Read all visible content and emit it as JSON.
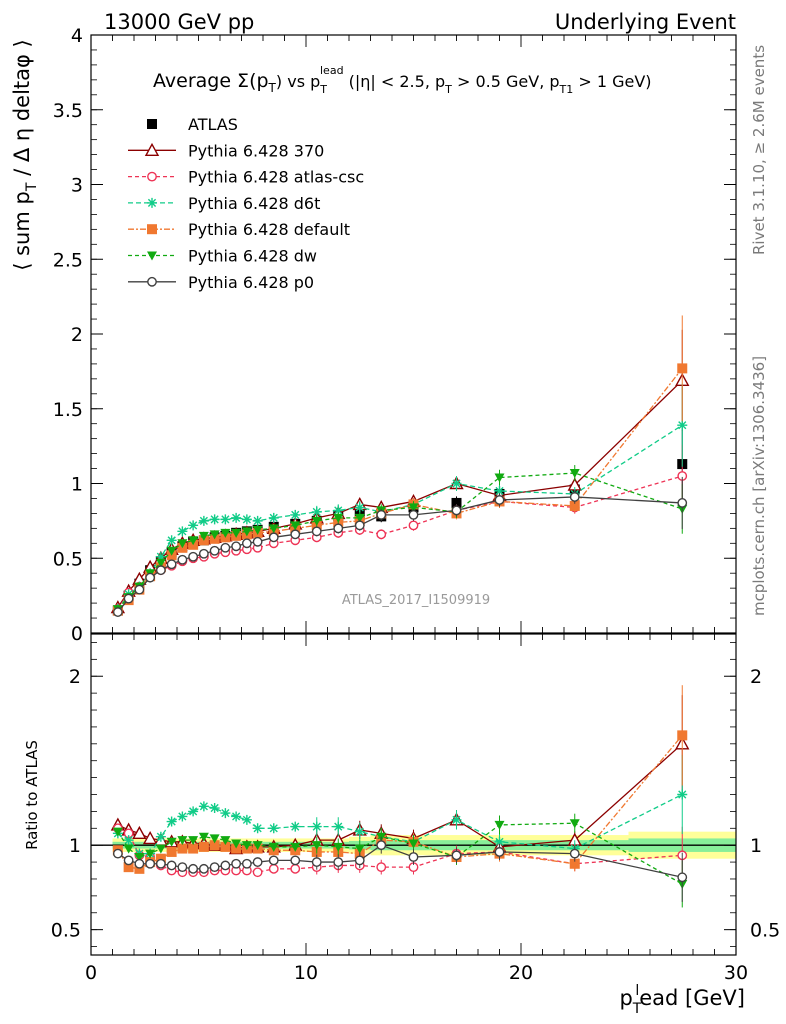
{
  "header": {
    "left": "13000 GeV pp",
    "right": "Underlying Event"
  },
  "side_labels": {
    "rivet": "Rivet 3.1.10, ≥ 2.6M events",
    "mcplots": "mcplots.cern.ch [arXiv:1306.3436]"
  },
  "watermark": "ATLAS_2017_I1509919",
  "chart_data": [
    {
      "type": "line",
      "title_parts": {
        "lead": "Average Σ(p",
        "t1": "T",
        "mid": ") vs p",
        "t2": "T",
        "sup": "lead",
        "rest": " (|η| < 2.5, p",
        "t3": "T",
        "rest2": " > 0.5 GeV, p",
        "t4": "T1",
        "rest3": " > 1 GeV)"
      },
      "ylabel": "⟨ sum p_T / Δ η deltaφ ⟩",
      "ylabel_parts": {
        "a": "⟨ sum p",
        "sub": "T",
        "b": " / Δ η deltaφ ⟩"
      },
      "xlim": [
        0,
        30
      ],
      "ylim": [
        0,
        4
      ],
      "yticks": [
        0,
        0.5,
        1,
        1.5,
        2,
        2.5,
        3,
        3.5,
        4
      ],
      "ytick_labels": [
        "0",
        "0.5",
        "1",
        "1.5",
        "2",
        "2.5",
        "3",
        "3.5",
        "4"
      ],
      "legend_position": "top-left",
      "x": [
        1.25,
        1.75,
        2.25,
        2.75,
        3.25,
        3.75,
        4.25,
        4.75,
        5.25,
        5.75,
        6.25,
        6.75,
        7.25,
        7.75,
        8.5,
        9.5,
        10.5,
        11.5,
        12.5,
        13.5,
        15,
        17,
        19,
        22.5,
        27.5
      ],
      "series": [
        {
          "name": "ATLAS",
          "color": "#000000",
          "marker": "square-filled",
          "dash": "none",
          "values": [
            0.15,
            0.25,
            0.33,
            0.42,
            0.48,
            0.54,
            0.58,
            0.61,
            0.62,
            0.64,
            0.65,
            0.67,
            0.68,
            0.69,
            0.71,
            0.73,
            0.75,
            0.78,
            0.79,
            0.78,
            0.84,
            0.87,
            0.93,
            0.96,
            1.13
          ]
        },
        {
          "name": "Pythia 6.428 370",
          "color": "#8b0000",
          "marker": "triangle-open",
          "dash": "none",
          "values": [
            0.17,
            0.28,
            0.36,
            0.44,
            0.5,
            0.56,
            0.6,
            0.62,
            0.63,
            0.64,
            0.65,
            0.66,
            0.67,
            0.68,
            0.7,
            0.73,
            0.77,
            0.8,
            0.86,
            0.84,
            0.88,
            1.0,
            0.92,
            0.99,
            1.69
          ]
        },
        {
          "name": "Pythia 6.428 atlas-csc",
          "color": "#ee3355",
          "marker": "circle-open",
          "dash": "4,3",
          "values": [
            0.16,
            0.27,
            0.31,
            0.39,
            0.42,
            0.45,
            0.48,
            0.5,
            0.51,
            0.53,
            0.54,
            0.55,
            0.56,
            0.57,
            0.6,
            0.62,
            0.64,
            0.67,
            0.69,
            0.66,
            0.72,
            0.82,
            0.88,
            0.84,
            1.05
          ]
        },
        {
          "name": "Pythia 6.428 d6t",
          "color": "#11cc88",
          "marker": "star",
          "dash": "5,3",
          "values": [
            0.16,
            0.26,
            0.31,
            0.4,
            0.51,
            0.62,
            0.68,
            0.72,
            0.75,
            0.76,
            0.76,
            0.77,
            0.76,
            0.75,
            0.77,
            0.79,
            0.81,
            0.82,
            0.84,
            0.81,
            0.86,
            1.0,
            0.95,
            0.93,
            1.39
          ]
        },
        {
          "name": "Pythia 6.428 default",
          "color": "#f07830",
          "marker": "square-filled",
          "dash": "6,2,2,2",
          "values": [
            0.15,
            0.22,
            0.29,
            0.38,
            0.44,
            0.52,
            0.57,
            0.59,
            0.62,
            0.63,
            0.64,
            0.65,
            0.66,
            0.67,
            0.68,
            0.7,
            0.72,
            0.74,
            0.75,
            0.8,
            0.86,
            0.8,
            0.88,
            0.85,
            1.77
          ]
        },
        {
          "name": "Pythia 6.428 dw",
          "color": "#11aa11",
          "marker": "triangle-down-filled",
          "dash": "4,3",
          "values": [
            0.16,
            0.24,
            0.31,
            0.4,
            0.47,
            0.55,
            0.6,
            0.62,
            0.65,
            0.66,
            0.67,
            0.67,
            0.68,
            0.69,
            0.7,
            0.72,
            0.75,
            0.77,
            0.77,
            0.82,
            0.84,
            0.81,
            1.04,
            1.07,
            0.83
          ]
        },
        {
          "name": "Pythia 6.428 p0",
          "color": "#404040",
          "marker": "circle-open",
          "dash": "none",
          "values": [
            0.14,
            0.23,
            0.29,
            0.37,
            0.42,
            0.46,
            0.49,
            0.51,
            0.53,
            0.55,
            0.57,
            0.58,
            0.6,
            0.61,
            0.64,
            0.66,
            0.68,
            0.7,
            0.72,
            0.79,
            0.79,
            0.82,
            0.89,
            0.91,
            0.87
          ]
        }
      ]
    },
    {
      "type": "line",
      "ylabel": "Ratio to ATLAS",
      "xlabel_parts": {
        "a": "p",
        "sub": "T",
        "sup": "l",
        "b": "ead [GeV]"
      },
      "xlim": [
        0,
        30
      ],
      "xticks": [
        0,
        10,
        20,
        30
      ],
      "xtick_labels": [
        "0",
        "10",
        "20",
        "30"
      ],
      "ylim": [
        0.35,
        2.25
      ],
      "yticks": [
        0.5,
        1,
        2
      ],
      "ytick_labels": [
        "0.5",
        "1",
        "2"
      ],
      "reference_line": 1,
      "band_colors": {
        "inner": "#88ee99",
        "outer": "#ffff99"
      },
      "uncertainty_band": {
        "x_edges": [
          1,
          2,
          3,
          4,
          5,
          6,
          7,
          8,
          9,
          10,
          11,
          12,
          13,
          14,
          16,
          18,
          20,
          25,
          30
        ],
        "inner": [
          0.02,
          0.02,
          0.02,
          0.02,
          0.02,
          0.02,
          0.02,
          0.02,
          0.02,
          0.02,
          0.02,
          0.025,
          0.03,
          0.03,
          0.03,
          0.03,
          0.03,
          0.04
        ],
        "outer": [
          0.04,
          0.04,
          0.04,
          0.04,
          0.04,
          0.04,
          0.04,
          0.04,
          0.04,
          0.04,
          0.04,
          0.05,
          0.06,
          0.06,
          0.06,
          0.06,
          0.06,
          0.08
        ]
      },
      "x": [
        1.25,
        1.75,
        2.25,
        2.75,
        3.25,
        3.75,
        4.25,
        4.75,
        5.25,
        5.75,
        6.25,
        6.75,
        7.25,
        7.75,
        8.5,
        9.5,
        10.5,
        11.5,
        12.5,
        13.5,
        15,
        17,
        19,
        22.5,
        27.5
      ],
      "series": [
        {
          "name": "Pythia 6.428 370",
          "color": "#8b0000",
          "marker": "triangle-open",
          "dash": "none",
          "values": [
            1.12,
            1.09,
            1.07,
            1.04,
            1.03,
            1.02,
            1.02,
            1.01,
            1.01,
            1.0,
            1.0,
            0.98,
            0.99,
            0.99,
            0.99,
            1.0,
            1.03,
            1.03,
            1.09,
            1.07,
            1.04,
            1.15,
            0.99,
            1.03,
            1.6
          ]
        },
        {
          "name": "Pythia 6.428 atlas-csc",
          "color": "#ee3355",
          "marker": "circle-open",
          "dash": "4,3",
          "values": [
            1.1,
            1.07,
            0.94,
            0.93,
            0.88,
            0.85,
            0.84,
            0.84,
            0.84,
            0.85,
            0.85,
            0.85,
            0.85,
            0.84,
            0.86,
            0.86,
            0.87,
            0.88,
            0.88,
            0.87,
            0.87,
            0.95,
            0.96,
            0.89,
            0.94
          ]
        },
        {
          "name": "Pythia 6.428 d6t",
          "color": "#11cc88",
          "marker": "star",
          "dash": "5,3",
          "values": [
            1.07,
            1.03,
            0.95,
            0.95,
            1.05,
            1.14,
            1.17,
            1.2,
            1.23,
            1.22,
            1.19,
            1.17,
            1.15,
            1.1,
            1.1,
            1.11,
            1.11,
            1.11,
            1.08,
            1.05,
            1.02,
            1.15,
            1.02,
            0.98,
            1.3
          ]
        },
        {
          "name": "Pythia 6.428 default",
          "color": "#f07830",
          "marker": "square-filled",
          "dash": "6,2,2,2",
          "values": [
            0.97,
            0.87,
            0.86,
            0.9,
            0.92,
            0.96,
            0.98,
            0.98,
            0.99,
            1.0,
            0.99,
            0.98,
            0.98,
            0.98,
            0.97,
            0.97,
            0.96,
            0.96,
            0.95,
            1.03,
            1.02,
            0.93,
            0.95,
            0.89,
            1.65
          ]
        },
        {
          "name": "Pythia 6.428 dw",
          "color": "#11aa11",
          "marker": "triangle-down-filled",
          "dash": "4,3",
          "values": [
            1.08,
            0.98,
            0.93,
            0.95,
            0.98,
            1.02,
            1.03,
            1.03,
            1.05,
            1.04,
            1.03,
            1.01,
            1.0,
            1.0,
            0.99,
            0.99,
            1.0,
            0.99,
            0.98,
            1.05,
            1.01,
            0.93,
            1.12,
            1.13,
            0.77
          ]
        },
        {
          "name": "Pythia 6.428 p0",
          "color": "#404040",
          "marker": "circle-open",
          "dash": "none",
          "values": [
            0.95,
            0.91,
            0.89,
            0.89,
            0.89,
            0.88,
            0.87,
            0.86,
            0.86,
            0.87,
            0.88,
            0.89,
            0.89,
            0.9,
            0.91,
            0.91,
            0.9,
            0.9,
            0.91,
            1.0,
            0.93,
            0.94,
            0.96,
            0.95,
            0.81
          ]
        }
      ]
    }
  ]
}
